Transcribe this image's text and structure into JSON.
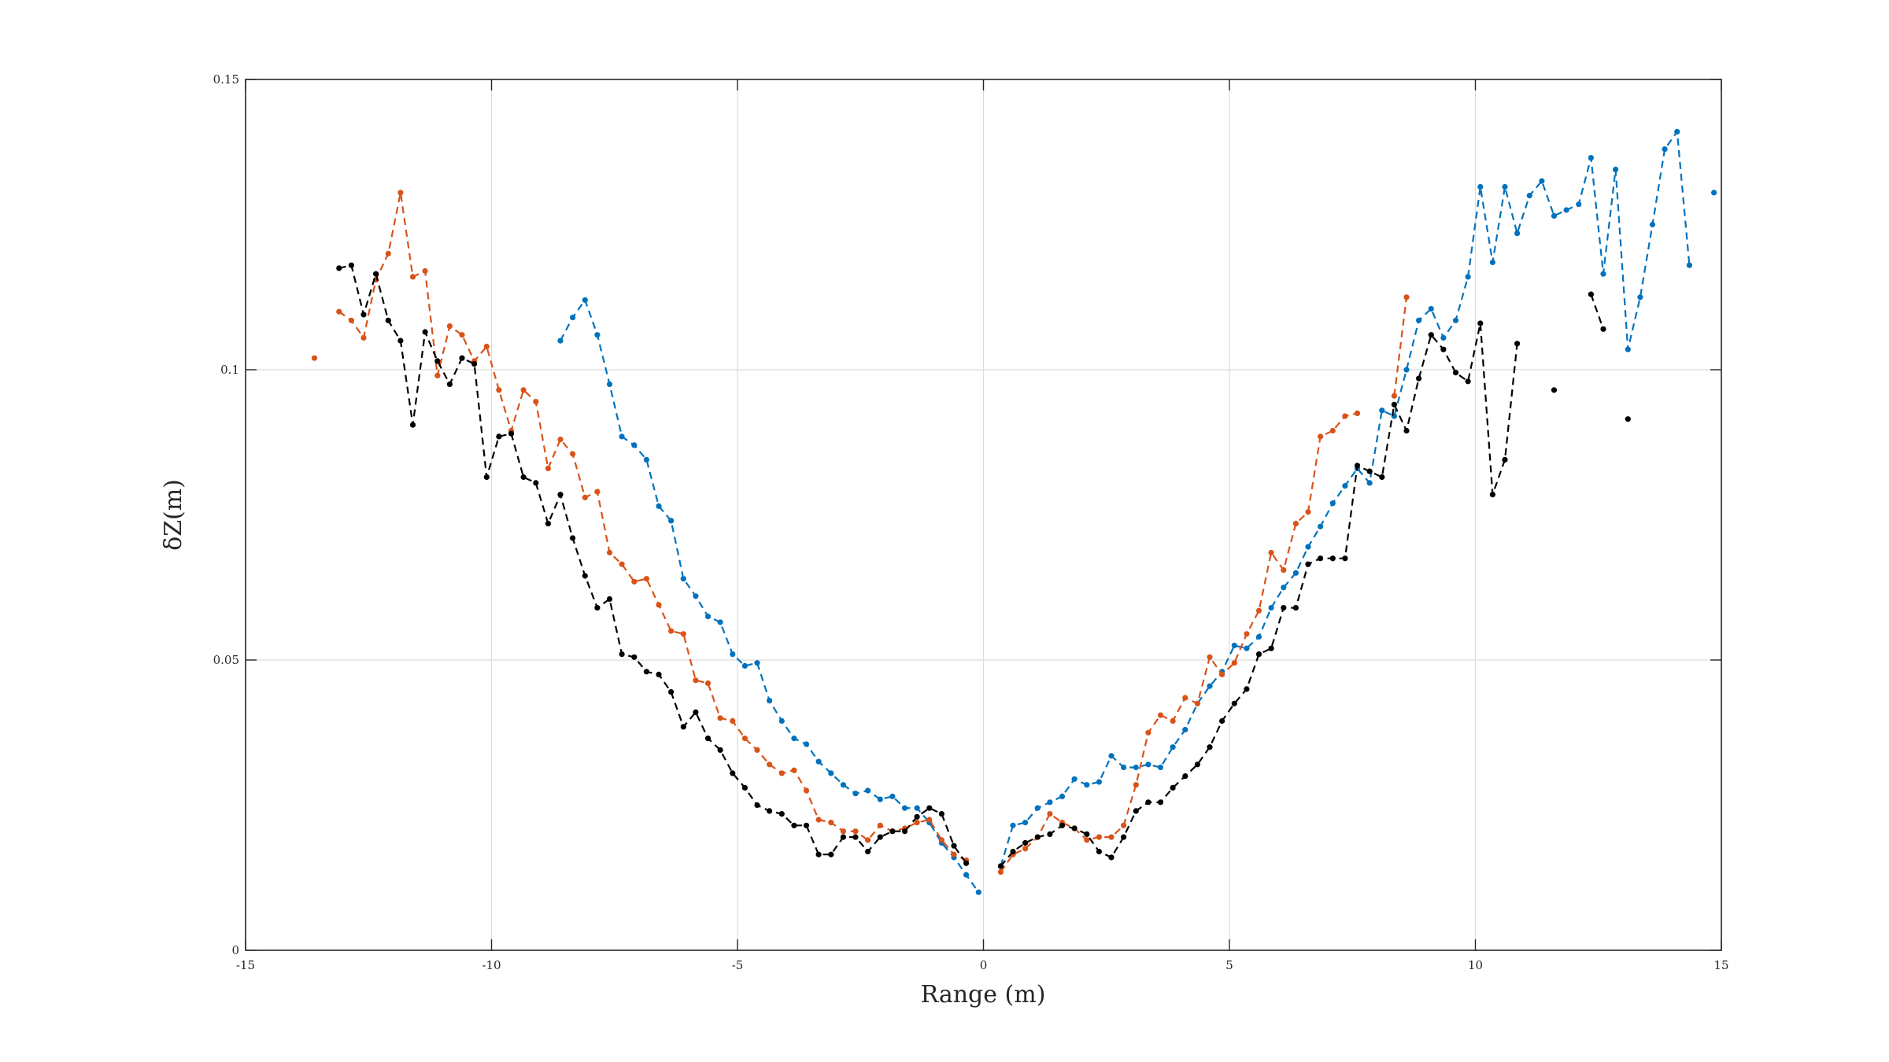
{
  "chart_data": {
    "type": "line",
    "title": "",
    "xlabel": "Range (m)",
    "ylabel": "δZ(m)",
    "xlim": [
      -15,
      15
    ],
    "ylim": [
      0,
      0.15
    ],
    "xticks": [
      -15,
      -10,
      -5,
      0,
      5,
      10,
      15
    ],
    "yticks": [
      0,
      0.05,
      0.1,
      0.15
    ],
    "xtick_labels": [
      "-15",
      "-10",
      "-5",
      "0",
      "5",
      "10",
      "15"
    ],
    "ytick_labels": [
      "0",
      "0.05",
      "0.1",
      "0.15"
    ],
    "grid": true,
    "legend": "none",
    "line_style": "dashed with dot markers",
    "series": [
      {
        "color": "#0072BD",
        "points": [
          [
            -8.6,
            0.105
          ],
          [
            -8.35,
            0.109
          ],
          [
            -8.1,
            0.112
          ],
          [
            -7.85,
            0.106
          ],
          [
            -7.6,
            0.0975
          ],
          [
            -7.35,
            0.0885
          ],
          [
            -7.1,
            0.087
          ],
          [
            -6.85,
            0.0845
          ],
          [
            -6.6,
            0.0765
          ],
          [
            -6.35,
            0.074
          ],
          [
            -6.1,
            0.064
          ],
          [
            -5.85,
            0.061
          ],
          [
            -5.6,
            0.0575
          ],
          [
            -5.35,
            0.0565
          ],
          [
            -5.1,
            0.051
          ],
          [
            -4.85,
            0.049
          ],
          [
            -4.6,
            0.0495
          ],
          [
            -4.35,
            0.043
          ],
          [
            -4.1,
            0.0395
          ],
          [
            -3.85,
            0.0365
          ],
          [
            -3.6,
            0.0355
          ],
          [
            -3.35,
            0.0325
          ],
          [
            -3.1,
            0.0305
          ],
          [
            -2.85,
            0.0285
          ],
          [
            -2.6,
            0.027
          ],
          [
            -2.35,
            0.0275
          ],
          [
            -2.1,
            0.026
          ],
          [
            -1.85,
            0.0265
          ],
          [
            -1.6,
            0.0245
          ],
          [
            -1.35,
            0.0245
          ],
          [
            -1.1,
            0.022
          ],
          [
            -0.85,
            0.0185
          ],
          [
            -0.6,
            0.016
          ],
          [
            -0.35,
            0.013
          ],
          [
            -0.1,
            0.01
          ],
          null,
          [
            0.35,
            0.0145
          ],
          [
            0.6,
            0.0215
          ],
          [
            0.85,
            0.022
          ],
          [
            1.1,
            0.0245
          ],
          [
            1.35,
            0.0255
          ],
          [
            1.6,
            0.0265
          ],
          [
            1.85,
            0.0295
          ],
          [
            2.1,
            0.0285
          ],
          [
            2.35,
            0.029
          ],
          [
            2.6,
            0.0335
          ],
          [
            2.85,
            0.0315
          ],
          [
            3.1,
            0.0315
          ],
          [
            3.35,
            0.032
          ],
          [
            3.6,
            0.0315
          ],
          [
            3.85,
            0.035
          ],
          [
            4.1,
            0.038
          ],
          [
            4.35,
            0.0425
          ],
          [
            4.6,
            0.0455
          ],
          [
            4.85,
            0.048
          ],
          [
            5.1,
            0.0525
          ],
          [
            5.35,
            0.052
          ],
          [
            5.6,
            0.054
          ],
          [
            5.85,
            0.059
          ],
          [
            6.1,
            0.0625
          ],
          [
            6.35,
            0.065
          ],
          [
            6.6,
            0.0695
          ],
          [
            6.85,
            0.073
          ],
          [
            7.1,
            0.077
          ],
          [
            7.35,
            0.08
          ],
          [
            7.6,
            0.083
          ],
          [
            7.85,
            0.0805
          ],
          [
            8.1,
            0.093
          ],
          [
            8.35,
            0.092
          ],
          [
            8.6,
            0.1
          ],
          [
            8.85,
            0.1085
          ],
          [
            9.1,
            0.1105
          ],
          [
            9.35,
            0.1055
          ],
          [
            9.6,
            0.1085
          ],
          [
            9.85,
            0.116
          ],
          [
            10.1,
            0.1315
          ],
          [
            10.35,
            0.1185
          ],
          [
            10.6,
            0.1315
          ],
          [
            10.85,
            0.1235
          ],
          [
            11.1,
            0.13
          ],
          [
            11.35,
            0.1325
          ],
          [
            11.6,
            0.1265
          ],
          [
            11.85,
            0.1275
          ],
          [
            12.1,
            0.1285
          ],
          [
            12.35,
            0.1365
          ],
          [
            12.6,
            0.1165
          ],
          [
            12.85,
            0.1345
          ],
          [
            13.1,
            0.1035
          ],
          [
            13.35,
            0.1125
          ],
          [
            13.6,
            0.125
          ],
          [
            13.85,
            0.138
          ],
          [
            14.1,
            0.141
          ],
          [
            14.35,
            0.118
          ],
          null,
          [
            14.85,
            0.1305
          ]
        ]
      },
      {
        "color": "#D95319",
        "points": [
          [
            -13.6,
            0.102
          ],
          null,
          [
            -13.1,
            0.11
          ],
          [
            -12.85,
            0.1085
          ],
          [
            -12.6,
            0.1055
          ],
          [
            -12.35,
            0.1155
          ],
          [
            -12.1,
            0.12
          ],
          [
            -11.85,
            0.1305
          ],
          [
            -11.6,
            0.116
          ],
          [
            -11.35,
            0.117
          ],
          [
            -11.1,
            0.099
          ],
          [
            -10.85,
            0.1075
          ],
          [
            -10.6,
            0.106
          ],
          [
            -10.35,
            0.1015
          ],
          [
            -10.1,
            0.104
          ],
          [
            -9.85,
            0.0965
          ],
          [
            -9.6,
            0.0895
          ],
          [
            -9.35,
            0.0965
          ],
          [
            -9.1,
            0.0945
          ],
          [
            -8.85,
            0.083
          ],
          [
            -8.6,
            0.088
          ],
          [
            -8.35,
            0.0855
          ],
          [
            -8.1,
            0.078
          ],
          [
            -7.85,
            0.079
          ],
          [
            -7.6,
            0.0685
          ],
          [
            -7.35,
            0.0665
          ],
          [
            -7.1,
            0.0635
          ],
          [
            -6.85,
            0.064
          ],
          [
            -6.6,
            0.0595
          ],
          [
            -6.35,
            0.055
          ],
          [
            -6.1,
            0.0545
          ],
          [
            -5.85,
            0.0465
          ],
          [
            -5.6,
            0.046
          ],
          [
            -5.35,
            0.04
          ],
          [
            -5.1,
            0.0395
          ],
          [
            -4.85,
            0.0365
          ],
          [
            -4.6,
            0.0345
          ],
          [
            -4.35,
            0.032
          ],
          [
            -4.1,
            0.0305
          ],
          [
            -3.85,
            0.031
          ],
          [
            -3.6,
            0.0275
          ],
          [
            -3.35,
            0.0225
          ],
          [
            -3.1,
            0.022
          ],
          [
            -2.85,
            0.0205
          ],
          [
            -2.6,
            0.0205
          ],
          [
            -2.35,
            0.019
          ],
          [
            -2.1,
            0.0215
          ],
          [
            -1.85,
            0.0205
          ],
          [
            -1.6,
            0.021
          ],
          [
            -1.35,
            0.022
          ],
          [
            -1.1,
            0.0225
          ],
          [
            -0.85,
            0.019
          ],
          [
            -0.6,
            0.0165
          ],
          [
            -0.35,
            0.0155
          ],
          null,
          [
            0.35,
            0.0135
          ],
          [
            0.6,
            0.0165
          ],
          [
            0.85,
            0.0175
          ],
          [
            1.1,
            0.0195
          ],
          [
            1.35,
            0.0235
          ],
          [
            1.6,
            0.022
          ],
          [
            1.85,
            0.021
          ],
          [
            2.1,
            0.019
          ],
          [
            2.35,
            0.0195
          ],
          [
            2.6,
            0.0195
          ],
          [
            2.85,
            0.0215
          ],
          [
            3.1,
            0.0285
          ],
          [
            3.35,
            0.0375
          ],
          [
            3.6,
            0.0405
          ],
          [
            3.85,
            0.0395
          ],
          [
            4.1,
            0.0435
          ],
          [
            4.35,
            0.0425
          ],
          [
            4.6,
            0.0505
          ],
          [
            4.85,
            0.0475
          ],
          [
            5.1,
            0.0495
          ],
          [
            5.35,
            0.0545
          ],
          [
            5.6,
            0.0585
          ],
          [
            5.85,
            0.0685
          ],
          [
            6.1,
            0.0655
          ],
          [
            6.35,
            0.0735
          ],
          [
            6.6,
            0.0755
          ],
          [
            6.85,
            0.0885
          ],
          [
            7.1,
            0.0895
          ],
          [
            7.35,
            0.092
          ],
          [
            7.6,
            0.0925
          ],
          null,
          [
            8.35,
            0.0955
          ],
          [
            8.6,
            0.1125
          ]
        ]
      },
      {
        "color": "#000000",
        "points": [
          [
            -13.1,
            0.1175
          ],
          [
            -12.85,
            0.118
          ],
          [
            -12.6,
            0.1095
          ],
          [
            -12.35,
            0.1165
          ],
          [
            -12.1,
            0.1085
          ],
          [
            -11.85,
            0.105
          ],
          [
            -11.6,
            0.0905
          ],
          [
            -11.35,
            0.1065
          ],
          [
            -11.1,
            0.1015
          ],
          [
            -10.85,
            0.0975
          ],
          [
            -10.6,
            0.102
          ],
          [
            -10.35,
            0.101
          ],
          [
            -10.1,
            0.0815
          ],
          [
            -9.85,
            0.0885
          ],
          [
            -9.6,
            0.089
          ],
          [
            -9.35,
            0.0815
          ],
          [
            -9.1,
            0.0805
          ],
          [
            -8.85,
            0.0735
          ],
          [
            -8.6,
            0.0785
          ],
          [
            -8.35,
            0.071
          ],
          [
            -8.1,
            0.0645
          ],
          [
            -7.85,
            0.059
          ],
          [
            -7.6,
            0.0605
          ],
          [
            -7.35,
            0.051
          ],
          [
            -7.1,
            0.0505
          ],
          [
            -6.85,
            0.048
          ],
          [
            -6.6,
            0.0475
          ],
          [
            -6.35,
            0.0445
          ],
          [
            -6.1,
            0.0385
          ],
          [
            -5.85,
            0.041
          ],
          [
            -5.6,
            0.0365
          ],
          [
            -5.35,
            0.0345
          ],
          [
            -5.1,
            0.0305
          ],
          [
            -4.85,
            0.028
          ],
          [
            -4.6,
            0.025
          ],
          [
            -4.35,
            0.024
          ],
          [
            -4.1,
            0.0235
          ],
          [
            -3.85,
            0.0215
          ],
          [
            -3.6,
            0.0215
          ],
          [
            -3.35,
            0.0165
          ],
          [
            -3.1,
            0.0165
          ],
          [
            -2.85,
            0.0195
          ],
          [
            -2.6,
            0.0195
          ],
          [
            -2.35,
            0.017
          ],
          [
            -2.1,
            0.0195
          ],
          [
            -1.85,
            0.0205
          ],
          [
            -1.6,
            0.0205
          ],
          [
            -1.35,
            0.023
          ],
          [
            -1.1,
            0.0245
          ],
          [
            -0.85,
            0.0235
          ],
          [
            -0.6,
            0.018
          ],
          [
            -0.35,
            0.015
          ],
          null,
          [
            0.35,
            0.0145
          ],
          [
            0.6,
            0.017
          ],
          [
            0.85,
            0.0185
          ],
          [
            1.1,
            0.0195
          ],
          [
            1.35,
            0.02
          ],
          [
            1.6,
            0.0215
          ],
          [
            1.85,
            0.021
          ],
          [
            2.1,
            0.02
          ],
          [
            2.35,
            0.017
          ],
          [
            2.6,
            0.016
          ],
          [
            2.85,
            0.0195
          ],
          [
            3.1,
            0.024
          ],
          [
            3.35,
            0.0255
          ],
          [
            3.6,
            0.0255
          ],
          [
            3.85,
            0.028
          ],
          [
            4.1,
            0.03
          ],
          [
            4.35,
            0.032
          ],
          [
            4.6,
            0.035
          ],
          [
            4.85,
            0.0395
          ],
          [
            5.1,
            0.0425
          ],
          [
            5.35,
            0.045
          ],
          [
            5.6,
            0.051
          ],
          [
            5.85,
            0.052
          ],
          [
            6.1,
            0.059
          ],
          [
            6.35,
            0.059
          ],
          [
            6.6,
            0.0665
          ],
          [
            6.85,
            0.0675
          ],
          [
            7.1,
            0.0675
          ],
          [
            7.35,
            0.0675
          ],
          [
            7.6,
            0.0835
          ],
          [
            7.85,
            0.0825
          ],
          [
            8.1,
            0.0815
          ],
          [
            8.35,
            0.094
          ],
          [
            8.6,
            0.0895
          ],
          [
            8.85,
            0.0985
          ],
          [
            9.1,
            0.106
          ],
          [
            9.35,
            0.1035
          ],
          [
            9.6,
            0.0995
          ],
          [
            9.85,
            0.098
          ],
          [
            10.1,
            0.108
          ],
          [
            10.35,
            0.0785
          ],
          [
            10.6,
            0.0845
          ],
          [
            10.85,
            0.1045
          ],
          null,
          [
            11.6,
            0.0965
          ],
          null,
          [
            12.35,
            0.113
          ],
          [
            12.6,
            0.107
          ],
          null,
          [
            13.1,
            0.0915
          ]
        ]
      }
    ]
  }
}
